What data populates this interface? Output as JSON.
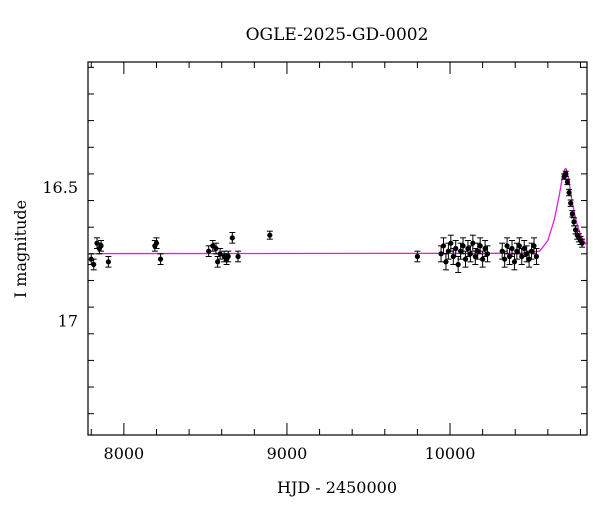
{
  "chart_data": {
    "type": "scatter",
    "title": "OGLE-2025-GD-0002",
    "xlabel": "HJD - 2450000",
    "ylabel": "I magnitude",
    "xlim": [
      7780,
      10840
    ],
    "ylim": [
      17.43,
      16.03
    ],
    "y_axis_inverted": true,
    "x_ticks": [
      8000,
      9000,
      10000
    ],
    "x_tick_labels": [
      "8000",
      "9000",
      "10000"
    ],
    "y_ticks": [
      16.5,
      17
    ],
    "y_tick_labels": [
      "16.5",
      "17"
    ],
    "grid": false,
    "legend": "none",
    "colors": {
      "points": "#000000",
      "model": "#e020e0"
    },
    "series": [
      {
        "kind": "points-with-errorbars",
        "points": [
          [
            7800,
            16.77,
            0.02
          ],
          [
            7815,
            16.79,
            0.02
          ],
          [
            7835,
            16.71,
            0.02
          ],
          [
            7850,
            16.73,
            0.02
          ],
          [
            7860,
            16.72,
            0.02
          ],
          [
            7905,
            16.78,
            0.02
          ],
          [
            8190,
            16.72,
            0.02
          ],
          [
            8200,
            16.71,
            0.02
          ],
          [
            8225,
            16.77,
            0.02
          ],
          [
            8520,
            16.74,
            0.02
          ],
          [
            8545,
            16.72,
            0.02
          ],
          [
            8565,
            16.73,
            0.02
          ],
          [
            8575,
            16.78,
            0.02
          ],
          [
            8590,
            16.75,
            0.02
          ],
          [
            8615,
            16.76,
            0.02
          ],
          [
            8630,
            16.77,
            0.02
          ],
          [
            8640,
            16.76,
            0.02
          ],
          [
            8665,
            16.69,
            0.02
          ],
          [
            8700,
            16.76,
            0.02
          ],
          [
            8895,
            16.68,
            0.015
          ],
          [
            9800,
            16.76,
            0.02
          ],
          [
            9945,
            16.75,
            0.03
          ],
          [
            9960,
            16.72,
            0.03
          ],
          [
            9975,
            16.78,
            0.03
          ],
          [
            9990,
            16.74,
            0.03
          ],
          [
            10005,
            16.71,
            0.03
          ],
          [
            10020,
            16.76,
            0.03
          ],
          [
            10035,
            16.73,
            0.03
          ],
          [
            10050,
            16.79,
            0.03
          ],
          [
            10065,
            16.74,
            0.03
          ],
          [
            10080,
            16.72,
            0.03
          ],
          [
            10095,
            16.77,
            0.03
          ],
          [
            10110,
            16.73,
            0.03
          ],
          [
            10125,
            16.75,
            0.03
          ],
          [
            10140,
            16.71,
            0.03
          ],
          [
            10155,
            16.76,
            0.03
          ],
          [
            10170,
            16.74,
            0.03
          ],
          [
            10185,
            16.72,
            0.03
          ],
          [
            10200,
            16.77,
            0.03
          ],
          [
            10215,
            16.73,
            0.03
          ],
          [
            10230,
            16.75,
            0.03
          ],
          [
            10320,
            16.74,
            0.03
          ],
          [
            10335,
            16.77,
            0.03
          ],
          [
            10350,
            16.72,
            0.03
          ],
          [
            10365,
            16.76,
            0.03
          ],
          [
            10380,
            16.73,
            0.03
          ],
          [
            10395,
            16.78,
            0.03
          ],
          [
            10410,
            16.74,
            0.03
          ],
          [
            10425,
            16.72,
            0.03
          ],
          [
            10440,
            16.76,
            0.03
          ],
          [
            10455,
            16.73,
            0.03
          ],
          [
            10470,
            16.75,
            0.03
          ],
          [
            10485,
            16.77,
            0.03
          ],
          [
            10500,
            16.74,
            0.03
          ],
          [
            10515,
            16.72,
            0.03
          ],
          [
            10530,
            16.76,
            0.03
          ],
          [
            10700,
            16.46,
            0.01
          ],
          [
            10710,
            16.45,
            0.01
          ],
          [
            10720,
            16.48,
            0.01
          ],
          [
            10730,
            16.52,
            0.012
          ],
          [
            10740,
            16.56,
            0.012
          ],
          [
            10750,
            16.6,
            0.012
          ],
          [
            10760,
            16.63,
            0.015
          ],
          [
            10770,
            16.66,
            0.015
          ],
          [
            10780,
            16.68,
            0.015
          ],
          [
            10790,
            16.69,
            0.015
          ],
          [
            10800,
            16.7,
            0.015
          ],
          [
            10810,
            16.71,
            0.015
          ]
        ]
      },
      {
        "kind": "model-curve",
        "baseline": 16.749,
        "peak_x": 10710,
        "peak_mag": 16.43,
        "points": [
          [
            7780,
            16.749
          ],
          [
            10450,
            16.748
          ],
          [
            10550,
            16.74
          ],
          [
            10600,
            16.7
          ],
          [
            10640,
            16.62
          ],
          [
            10670,
            16.53
          ],
          [
            10690,
            16.46
          ],
          [
            10705,
            16.432
          ],
          [
            10712,
            16.43
          ],
          [
            10725,
            16.46
          ],
          [
            10750,
            16.56
          ],
          [
            10775,
            16.63
          ],
          [
            10800,
            16.68
          ],
          [
            10840,
            16.72
          ]
        ]
      }
    ]
  }
}
